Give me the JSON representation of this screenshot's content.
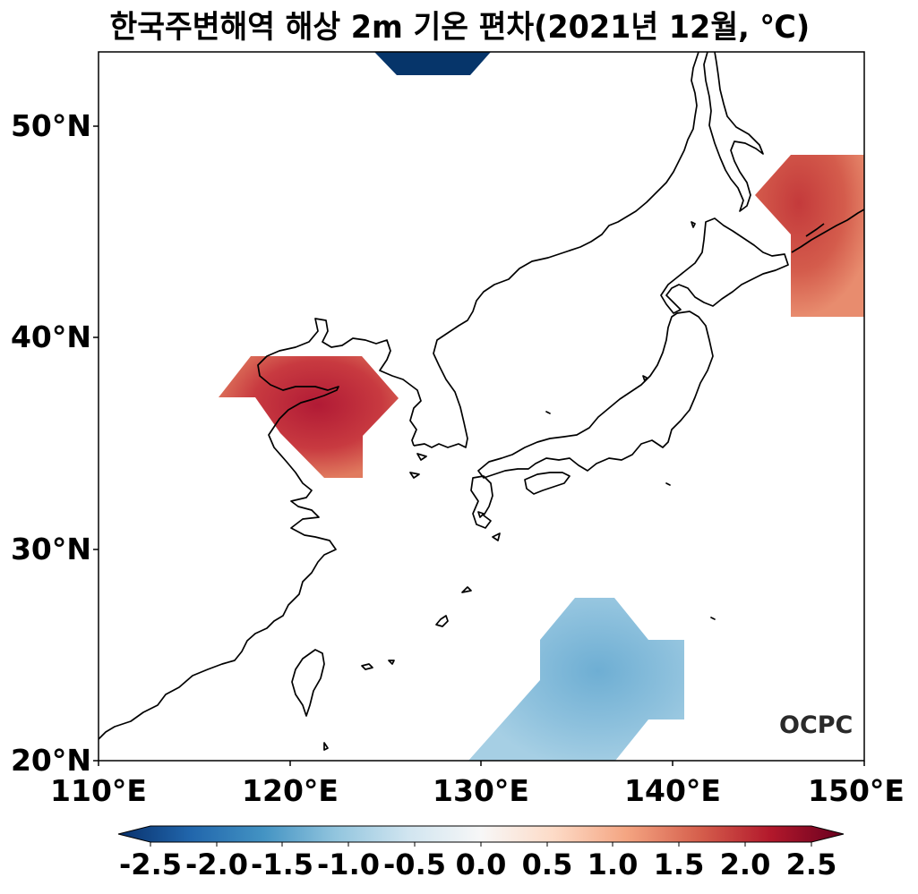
{
  "title": "한국주변해역 해상 2m 기온 편차(2021년 12월, ℃)",
  "map": {
    "lon_range": [
      110,
      150
    ],
    "lat_range": [
      20,
      53.5
    ],
    "x_ticks": [
      "110°E",
      "120°E",
      "130°E",
      "140°E",
      "150°E"
    ],
    "y_ticks": [
      "20°N",
      "30°N",
      "40°N",
      "50°N"
    ],
    "anomaly_regions": [
      {
        "name": "Bohai and Yellow Sea",
        "anomaly": 2.2,
        "color": "#c0273a"
      },
      {
        "name": "East of Hokkaido",
        "anomaly": 1.7,
        "color": "#d0564b"
      },
      {
        "name": "South of Japan / Philippine Sea",
        "anomaly": -0.9,
        "color": "#8ec1dd"
      },
      {
        "name": "Top edge strip",
        "anomaly": -2.5,
        "color": "#06356a"
      }
    ]
  },
  "colorbar": {
    "colormap": "RdBu_r",
    "range": [
      -2.5,
      2.5
    ],
    "ticks": [
      "-2.5",
      "-2.0",
      "-1.5",
      "-1.0",
      "-0.5",
      "0.0",
      "0.5",
      "1.0",
      "1.5",
      "2.0",
      "2.5"
    ],
    "extend": "both"
  },
  "logo": "OCPC"
}
